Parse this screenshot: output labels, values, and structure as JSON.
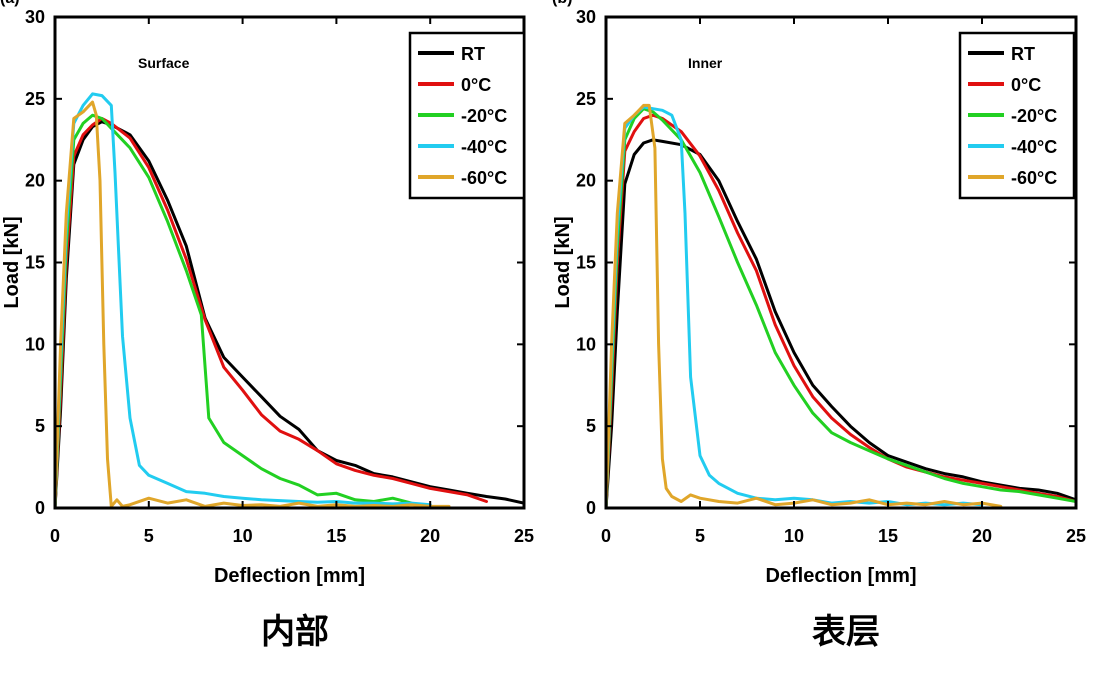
{
  "panel_marks": [
    "(a)",
    "(b)"
  ],
  "chart_data": [
    {
      "type": "line",
      "title": "Surface",
      "caption": "内部",
      "xlabel": "Deflection [mm]",
      "ylabel": "Load [kN]",
      "xlim": [
        0,
        25
      ],
      "ylim": [
        0,
        30
      ],
      "xticks": [
        "0",
        "5",
        "10",
        "15",
        "20",
        "25"
      ],
      "yticks": [
        "0",
        "5",
        "10",
        "15",
        "20",
        "25",
        "30"
      ],
      "grid": false,
      "legend_position": "top-right",
      "series": [
        {
          "name": "RT",
          "color": "#000000",
          "x": [
            0,
            0.3,
            0.6,
            1,
            1.5,
            2,
            2.5,
            3,
            4,
            5,
            6,
            7,
            8,
            9,
            10,
            11,
            12,
            13,
            14,
            15,
            16,
            17,
            18,
            19,
            20,
            21,
            22,
            23,
            24,
            25
          ],
          "y": [
            0,
            6,
            14,
            21,
            22.5,
            23.3,
            23.6,
            23.4,
            22.8,
            21.2,
            18.8,
            16,
            11.6,
            9.2,
            8,
            6.8,
            5.6,
            4.8,
            3.5,
            2.9,
            2.6,
            2.1,
            1.9,
            1.6,
            1.3,
            1.1,
            0.9,
            0.7,
            0.55,
            0.3
          ]
        },
        {
          "name": "0°C",
          "color": "#e01010",
          "x": [
            0,
            0.3,
            0.6,
            1,
            1.5,
            2,
            2.5,
            3,
            4,
            5,
            6,
            7,
            8,
            9,
            10,
            11,
            12,
            13,
            14,
            15,
            16,
            17,
            18,
            19,
            20,
            21,
            22,
            23
          ],
          "y": [
            0,
            7,
            15,
            21.5,
            22.8,
            23.4,
            23.8,
            23.5,
            22.6,
            20.8,
            18.2,
            15.2,
            11.5,
            8.6,
            7.2,
            5.7,
            4.7,
            4.2,
            3.5,
            2.7,
            2.3,
            2,
            1.8,
            1.5,
            1.2,
            1,
            0.8,
            0.4
          ]
        },
        {
          "name": "-20°C",
          "color": "#22d022",
          "x": [
            0,
            0.3,
            0.6,
            1,
            1.5,
            2,
            2.5,
            3,
            4,
            5,
            6,
            7,
            7.8,
            8.2,
            9,
            10,
            11,
            12,
            13,
            14,
            15,
            16,
            17,
            18,
            19
          ],
          "y": [
            0,
            8,
            16,
            22.5,
            23.5,
            24,
            23.8,
            23.2,
            22,
            20.2,
            17.5,
            14.5,
            11.8,
            5.5,
            4,
            3.2,
            2.4,
            1.8,
            1.4,
            0.8,
            0.9,
            0.5,
            0.4,
            0.6,
            0.3
          ]
        },
        {
          "name": "-40°C",
          "color": "#22ccf0",
          "x": [
            0,
            0.3,
            0.6,
            1,
            1.5,
            2,
            2.5,
            3,
            3.2,
            3.6,
            4,
            4.5,
            5,
            6,
            7,
            8,
            9,
            10,
            11,
            12,
            13,
            14,
            15,
            16,
            17,
            18,
            19,
            20
          ],
          "y": [
            0,
            9,
            17,
            23.5,
            24.6,
            25.3,
            25.2,
            24.6,
            20.5,
            10.5,
            5.5,
            2.6,
            2,
            1.5,
            1,
            0.9,
            0.7,
            0.6,
            0.5,
            0.45,
            0.4,
            0.35,
            0.4,
            0.3,
            0.3,
            0.25,
            0.3,
            0.2
          ]
        },
        {
          "name": "-60°C",
          "color": "#e0a62a",
          "x": [
            0,
            0.3,
            0.6,
            1,
            1.5,
            2,
            2.2,
            2.4,
            2.6,
            2.8,
            3,
            3.3,
            3.6,
            4,
            5,
            6,
            7,
            8,
            9,
            10,
            11,
            12,
            13,
            14,
            15,
            16,
            17,
            18,
            19,
            20,
            21
          ],
          "y": [
            0,
            10,
            18,
            23.8,
            24.2,
            24.8,
            24,
            20,
            10,
            3,
            0.1,
            0.5,
            0.1,
            0.2,
            0.6,
            0.3,
            0.5,
            0.1,
            0.3,
            0.15,
            0.2,
            0.1,
            0.3,
            0.1,
            0.2,
            0.1,
            0.15,
            0.1,
            0.2,
            0.1,
            0.1
          ]
        }
      ]
    },
    {
      "type": "line",
      "title": "Inner",
      "caption": "表层",
      "xlabel": "Deflection [mm]",
      "ylabel": "Load [kN]",
      "xlim": [
        0,
        25
      ],
      "ylim": [
        0,
        30
      ],
      "xticks": [
        "0",
        "5",
        "10",
        "15",
        "20",
        "25"
      ],
      "yticks": [
        "0",
        "5",
        "10",
        "15",
        "20",
        "25",
        "30"
      ],
      "grid": false,
      "legend_position": "top-right",
      "series": [
        {
          "name": "RT",
          "color": "#000000",
          "x": [
            0,
            0.3,
            0.6,
            1,
            1.5,
            2,
            2.5,
            3,
            4,
            5,
            6,
            7,
            8,
            9,
            10,
            11,
            12,
            13,
            14,
            15,
            16,
            17,
            18,
            19,
            20,
            21,
            22,
            23,
            24,
            25
          ],
          "y": [
            0,
            5,
            12,
            19.8,
            21.6,
            22.3,
            22.5,
            22.4,
            22.2,
            21.6,
            20,
            17.5,
            15.2,
            12,
            9.5,
            7.5,
            6.2,
            5,
            4,
            3.2,
            2.8,
            2.4,
            2.1,
            1.9,
            1.6,
            1.4,
            1.2,
            1.1,
            0.9,
            0.5
          ]
        },
        {
          "name": "0°C",
          "color": "#e01010",
          "x": [
            0,
            0.3,
            0.6,
            1,
            1.5,
            2,
            2.5,
            3,
            4,
            5,
            6,
            7,
            8,
            9,
            10,
            11,
            12,
            13,
            14,
            15,
            16,
            17,
            18,
            19,
            20,
            21,
            22,
            23,
            24,
            25
          ],
          "y": [
            0,
            7,
            15,
            21.8,
            23,
            23.8,
            24,
            23.8,
            23,
            21.5,
            19.4,
            16.8,
            14.5,
            11.2,
            8.7,
            6.8,
            5.5,
            4.5,
            3.7,
            3,
            2.5,
            2.2,
            1.9,
            1.7,
            1.5,
            1.3,
            1.1,
            0.9,
            0.7,
            0.4
          ]
        },
        {
          "name": "-20°C",
          "color": "#22d022",
          "x": [
            0,
            0.3,
            0.6,
            1,
            1.5,
            2,
            2.5,
            3,
            4,
            5,
            6,
            7,
            8,
            9,
            10,
            11,
            12,
            13,
            14,
            15,
            16,
            17,
            18,
            19,
            20,
            21,
            22,
            23,
            24,
            25
          ],
          "y": [
            0,
            8,
            16,
            22.5,
            23.8,
            24.4,
            24.2,
            23.7,
            22.5,
            20.5,
            17.8,
            15,
            12.4,
            9.5,
            7.5,
            5.8,
            4.6,
            4,
            3.5,
            3,
            2.6,
            2.2,
            1.8,
            1.5,
            1.3,
            1.1,
            1,
            0.8,
            0.6,
            0.4
          ]
        },
        {
          "name": "-40°C",
          "color": "#22ccf0",
          "x": [
            0,
            0.3,
            0.6,
            1,
            1.5,
            2,
            2.5,
            3,
            3.5,
            4,
            4.2,
            4.5,
            5,
            5.5,
            6,
            7,
            8,
            9,
            10,
            11,
            12,
            13,
            14,
            15,
            16,
            17,
            18,
            19,
            20
          ],
          "y": [
            0,
            9,
            17,
            23.2,
            24,
            24.5,
            24.4,
            24.3,
            24,
            22.5,
            18,
            8,
            3.2,
            2,
            1.5,
            0.9,
            0.6,
            0.5,
            0.6,
            0.5,
            0.3,
            0.4,
            0.3,
            0.4,
            0.2,
            0.3,
            0.2,
            0.3,
            0.2
          ]
        },
        {
          "name": "-60°C",
          "color": "#e0a62a",
          "x": [
            0,
            0.3,
            0.6,
            1,
            1.5,
            2,
            2.3,
            2.6,
            2.8,
            3,
            3.2,
            3.5,
            4,
            4.5,
            5,
            6,
            7,
            8,
            9,
            10,
            11,
            12,
            13,
            14,
            15,
            16,
            17,
            18,
            19,
            20,
            21
          ],
          "y": [
            0,
            10,
            18,
            23.5,
            24,
            24.6,
            24.6,
            22,
            10,
            3,
            1.2,
            0.7,
            0.4,
            0.8,
            0.6,
            0.4,
            0.3,
            0.6,
            0.2,
            0.3,
            0.5,
            0.2,
            0.3,
            0.5,
            0.2,
            0.3,
            0.2,
            0.4,
            0.2,
            0.3,
            0.1
          ]
        }
      ]
    }
  ]
}
